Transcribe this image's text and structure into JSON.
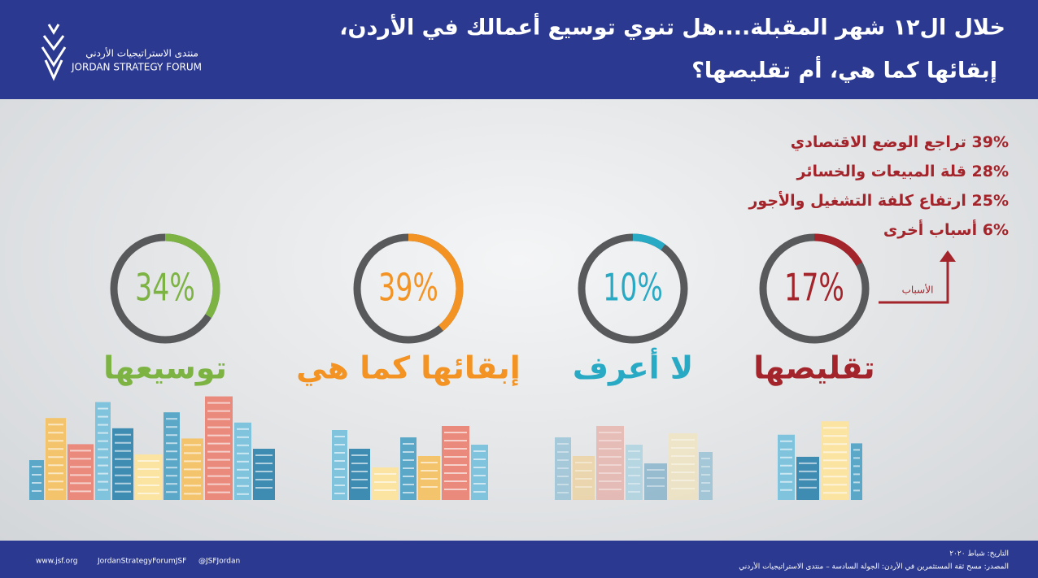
{
  "header": {
    "title_line1": "خلال ال١٢ شهر المقبلة....هل تنوي توسيع أعمالك في الأردن،",
    "title_line2": "إبقائها كما هي، أم تقليصها؟",
    "logo_arabic": "منتدى الاستراتيجيات الأردني",
    "logo_english": "JORDAN STRATEGY FORUM"
  },
  "donuts": [
    {
      "value": 34,
      "label": "34%",
      "caption": "توسيعها",
      "color": "#7cb342"
    },
    {
      "value": 39,
      "label": "39%",
      "caption": "إبقائها كما هي",
      "color": "#f39323"
    },
    {
      "value": 10,
      "label": "10%",
      "caption": "لا أعرف",
      "color": "#28a9c4"
    },
    {
      "value": 17,
      "label": "17%",
      "caption": "تقليصها",
      "color": "#a3242a"
    }
  ],
  "reasons_label": "الأسباب",
  "reasons": [
    {
      "percent": "39%",
      "text": "تراجع الوضع الاقتصادي"
    },
    {
      "percent": "28%",
      "text": "قلة المبيعات والخسائر"
    },
    {
      "percent": "25%",
      "text": "ارتفاع كلفة التشغيل والأجور"
    },
    {
      "percent": "6%",
      "text": "أسباب أخرى"
    }
  ],
  "footer": {
    "website": "www.jsf.org",
    "facebook": "JordanStrategyForumJSF",
    "twitter": "@JSFJordan",
    "date": "التاريخ: شباط ٢٠٢٠",
    "source": "المصدر: مسح ثقة المستثمرين في الأردن: الجولة السادسة – منتدى الاستراتيجيات الأردني"
  }
}
